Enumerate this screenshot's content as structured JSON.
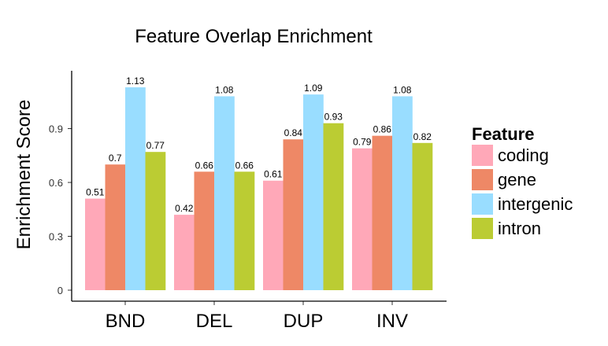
{
  "chart_data": {
    "type": "bar",
    "title": "Feature Overlap Enrichment",
    "xlabel": "",
    "ylabel": "Enrichment Score",
    "categories": [
      "BND",
      "DEL",
      "DUP",
      "INV"
    ],
    "yticks": [
      "0",
      "0.3",
      "0.6",
      "0.9"
    ],
    "ylim": [
      0,
      1.18
    ],
    "legend_title": "Feature",
    "legend_position": "right",
    "grid": false,
    "series": [
      {
        "name": "coding",
        "color": "#FFA8B8",
        "values": [
          0.51,
          0.42,
          0.61,
          0.79
        ],
        "labels": [
          "0.51",
          "0.42",
          "0.61",
          "0.79"
        ]
      },
      {
        "name": "gene",
        "color": "#EE8866",
        "values": [
          0.7,
          0.66,
          0.84,
          0.86
        ],
        "labels": [
          "0.7",
          "0.66",
          "0.84",
          "0.86"
        ]
      },
      {
        "name": "intergenic",
        "color": "#99DDFF",
        "values": [
          1.13,
          1.08,
          1.09,
          1.08
        ],
        "labels": [
          "1.13",
          "1.08",
          "1.09",
          "1.08"
        ]
      },
      {
        "name": "intron",
        "color": "#BBCC33",
        "values": [
          0.77,
          0.66,
          0.93,
          0.82
        ],
        "labels": [
          "0.77",
          "0.66",
          "0.93",
          "0.82"
        ]
      }
    ]
  }
}
